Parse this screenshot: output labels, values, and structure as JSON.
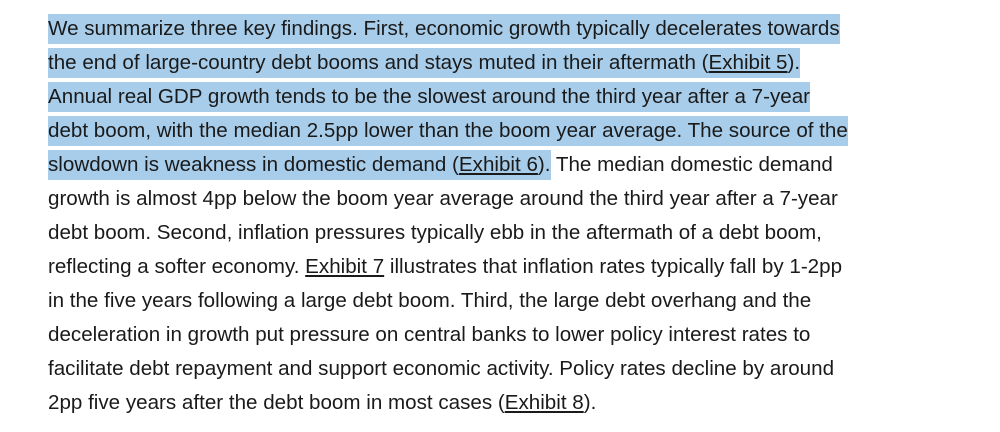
{
  "paragraph": {
    "lines": [
      {
        "pre": "",
        "hl": "We summarize three key findings. First, economic growth typically decelerates towards",
        "hl_link": "",
        "hl_post": "",
        "post": "",
        "link": "",
        "end": ""
      },
      {
        "pre": "",
        "hl": "the end of large-country debt booms and stays muted in their aftermath (",
        "hl_link": "Exhibit 5",
        "hl_post": ").",
        "post": "",
        "link": "",
        "end": ""
      },
      {
        "pre": "",
        "hl": "Annual real GDP growth tends to be the slowest around the third year after a 7-year",
        "hl_link": "",
        "hl_post": "",
        "post": "",
        "link": "",
        "end": ""
      },
      {
        "pre": "",
        "hl": "debt boom, with the median 2.5pp lower than the boom year average. The source of the",
        "hl_link": "",
        "hl_post": "",
        "post": "",
        "link": "",
        "end": ""
      },
      {
        "pre": "",
        "hl": "slowdown is weakness in domestic demand (",
        "hl_link": "Exhibit 6",
        "hl_post": ").",
        "post": " The median domestic demand",
        "link": "",
        "end": ""
      },
      {
        "pre": "growth is almost 4pp below the boom year average around the third year after a 7-year",
        "hl": "",
        "hl_link": "",
        "hl_post": "",
        "post": "",
        "link": "",
        "end": ""
      },
      {
        "pre": "debt boom. Second, inflation pressures typically ebb in the aftermath of a debt boom,",
        "hl": "",
        "hl_link": "",
        "hl_post": "",
        "post": "",
        "link": "",
        "end": ""
      },
      {
        "pre": "reflecting a softer economy. ",
        "hl": "",
        "hl_link": "",
        "hl_post": "",
        "post": "",
        "link": "Exhibit 7",
        "end": " illustrates that inflation rates typically fall by 1-2pp"
      },
      {
        "pre": "in the five years following a large debt boom. Third, the large debt overhang and the",
        "hl": "",
        "hl_link": "",
        "hl_post": "",
        "post": "",
        "link": "",
        "end": ""
      },
      {
        "pre": "deceleration in growth put pressure on central banks to lower policy interest rates to",
        "hl": "",
        "hl_link": "",
        "hl_post": "",
        "post": "",
        "link": "",
        "end": ""
      },
      {
        "pre": "facilitate debt repayment and support economic activity. Policy rates decline by around",
        "hl": "",
        "hl_link": "",
        "hl_post": "",
        "post": "",
        "link": "",
        "end": ""
      },
      {
        "pre": "2pp five years after the debt boom in most cases (",
        "hl": "",
        "hl_link": "",
        "hl_post": "",
        "post": "",
        "link": "Exhibit 8",
        "end": ")."
      }
    ]
  },
  "colors": {
    "highlight": "#a8cdea",
    "text": "#1a1a1a"
  }
}
